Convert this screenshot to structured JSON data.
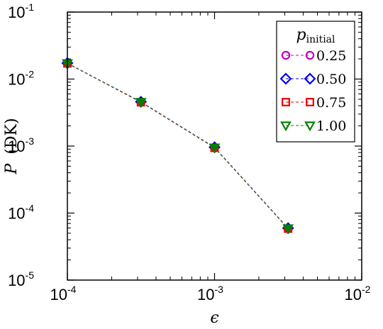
{
  "chart_data": {
    "type": "scatter",
    "title": "",
    "xlabel": "ϵ",
    "ylabel_symbol": "P",
    "ylabel_args": "(DK)",
    "xscale": "log",
    "yscale": "log",
    "xlim": [
      0.0001,
      0.01
    ],
    "ylim": [
      1e-05,
      0.1
    ],
    "x_ticks": [
      {
        "base": "10",
        "exp": "-4"
      },
      {
        "base": "10",
        "exp": "-3"
      },
      {
        "base": "10",
        "exp": "-2"
      }
    ],
    "y_ticks": [
      {
        "base": "10",
        "exp": "-5"
      },
      {
        "base": "10",
        "exp": "-4"
      },
      {
        "base": "10",
        "exp": "-3"
      },
      {
        "base": "10",
        "exp": "-2"
      },
      {
        "base": "10",
        "exp": "-1"
      }
    ],
    "legend": {
      "title_symbol": "p",
      "title_sub": "initial",
      "placement": "top-right"
    },
    "series": [
      {
        "name": "0.25",
        "marker": "circle",
        "color": "#c000c0",
        "x": [
          0.0001,
          0.000316,
          0.001,
          0.00316
        ],
        "y": [
          0.0172,
          0.00455,
          0.00095,
          5.9e-05
        ]
      },
      {
        "name": "0.50",
        "marker": "diamond",
        "color": "#0000ee",
        "x": [
          0.0001,
          0.000316,
          0.001,
          0.00316
        ],
        "y": [
          0.0173,
          0.00458,
          0.00096,
          5.95e-05
        ]
      },
      {
        "name": "0.75",
        "marker": "square",
        "color": "#ee0000",
        "x": [
          0.0001,
          0.000316,
          0.001,
          0.00316
        ],
        "y": [
          0.0171,
          0.0045,
          0.00094,
          5.85e-05
        ]
      },
      {
        "name": "1.00",
        "marker": "triangle-down",
        "color": "#008000",
        "x": [
          0.0001,
          0.000316,
          0.001,
          0.00316
        ],
        "y": [
          0.0172,
          0.00455,
          0.00095,
          5.9e-05
        ]
      }
    ],
    "line_style": "dashed"
  }
}
